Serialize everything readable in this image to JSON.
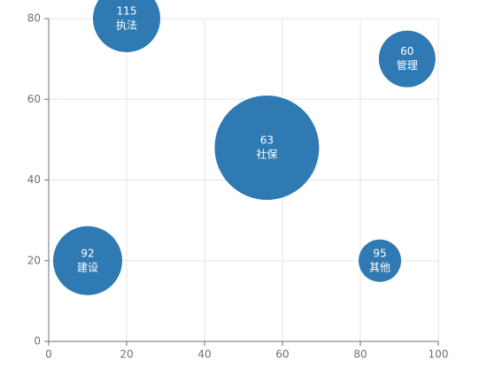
{
  "chart_data": {
    "type": "bubble",
    "x": [
      20,
      92,
      56,
      10,
      85
    ],
    "values": [
      80,
      70,
      48,
      20,
      20
    ],
    "sizes": [
      38,
      32,
      59,
      39,
      24
    ],
    "numbers": [
      115,
      60,
      63,
      92,
      95
    ],
    "names": [
      "执法",
      "管理",
      "社保",
      "建设",
      "其他"
    ],
    "color": "#2b77b1",
    "xlim": [
      0,
      100
    ],
    "xticks": [
      0,
      20,
      40,
      60,
      80,
      100
    ],
    "ylim": [
      0,
      80
    ],
    "yticks": [
      0,
      20,
      40,
      60,
      80
    ],
    "grid": true
  }
}
